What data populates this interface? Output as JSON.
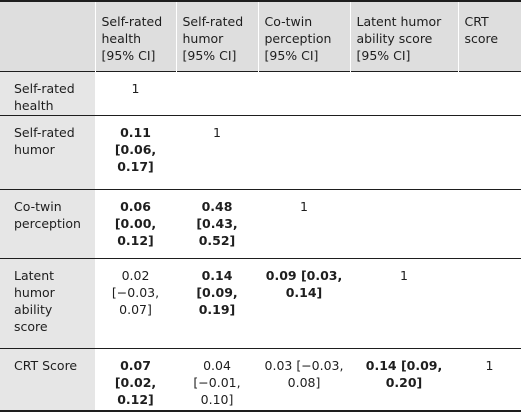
{
  "header": {
    "corner": "",
    "col1": "Self-rated health [95% CI]",
    "col2": "Self-rated humor [95% CI]",
    "col3": "Co-twin perception [95% CI]",
    "col4": "Latent humor ability score [95% CI]",
    "col5": "CRT score"
  },
  "rows": [
    {
      "label": "Self-rated health",
      "cells": [
        {
          "value": "1",
          "bold": false
        },
        {
          "value": "",
          "bold": false
        },
        {
          "value": "",
          "bold": false
        },
        {
          "value": "",
          "bold": false
        },
        {
          "value": "",
          "bold": false
        }
      ]
    },
    {
      "label": "Self-rated humor",
      "cells": [
        {
          "value": "0.11 [0.06, 0.17]",
          "bold": true
        },
        {
          "value": "1",
          "bold": false
        },
        {
          "value": "",
          "bold": false
        },
        {
          "value": "",
          "bold": false
        },
        {
          "value": "",
          "bold": false
        }
      ]
    },
    {
      "label": "Co-twin perception",
      "cells": [
        {
          "value": "0.06 [0.00, 0.12]",
          "bold": true
        },
        {
          "value": "0.48 [0.43, 0.52]",
          "bold": true
        },
        {
          "value": "1",
          "bold": false
        },
        {
          "value": "",
          "bold": false
        },
        {
          "value": "",
          "bold": false
        }
      ]
    },
    {
      "label": "Latent humor ability score",
      "cells": [
        {
          "value": "0.02 [−0.03, 0.07]",
          "bold": false
        },
        {
          "value": "0.14 [0.09, 0.19]",
          "bold": true
        },
        {
          "value": "0.09 [0.03, 0.14]",
          "bold": true
        },
        {
          "value": "1",
          "bold": false
        },
        {
          "value": "",
          "bold": false
        }
      ]
    },
    {
      "label": "CRT Score",
      "cells": [
        {
          "value": "0.07 [0.02, 0.12]",
          "bold": true
        },
        {
          "value": "0.04 [−0.01, 0.10]",
          "bold": false
        },
        {
          "value": "0.03 [−0.03, 0.08]",
          "bold": false
        },
        {
          "value": "0.14 [0.09, 0.20]",
          "bold": true
        },
        {
          "value": "1",
          "bold": false
        }
      ]
    }
  ],
  "colors": {
    "header_bg": "#dedede",
    "rowhead_bg": "#e6e6e6",
    "rule": "#1e1e1e",
    "text": "#1e1e1e"
  }
}
